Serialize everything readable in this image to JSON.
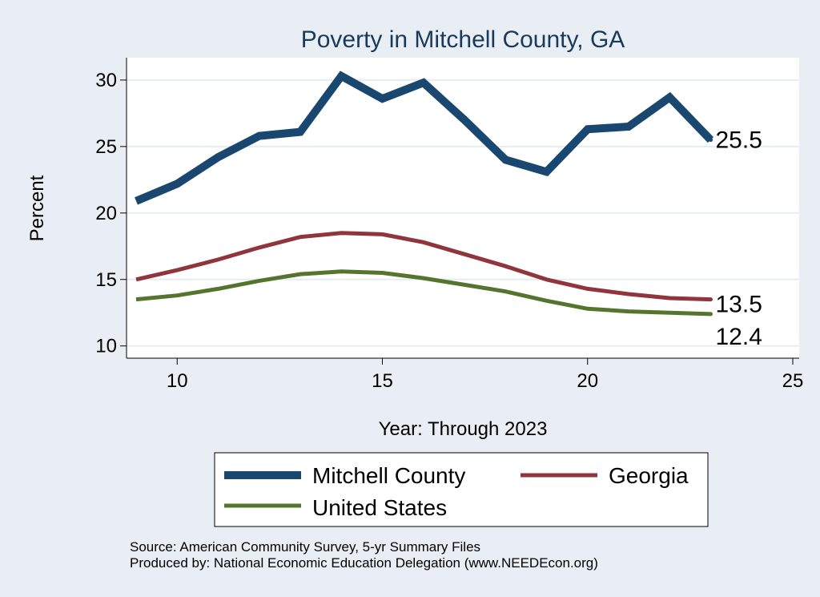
{
  "chart_data": {
    "type": "line",
    "title": "Poverty in Mitchell County, GA",
    "xlabel": "Year: Through 2023",
    "ylabel": "Percent",
    "xlim": [
      9,
      25
    ],
    "ylim": [
      9.5,
      31.2
    ],
    "xticks": [
      10,
      15,
      20,
      25
    ],
    "yticks": [
      10,
      15,
      20,
      25,
      30
    ],
    "grid": true,
    "legend_position": "bottom",
    "series": [
      {
        "name": "Mitchell County",
        "color": "#1a476f",
        "x": [
          9,
          10,
          11,
          12,
          13,
          14,
          15,
          16,
          17,
          18,
          19,
          20,
          21,
          22,
          23
        ],
        "values": [
          20.9,
          22.2,
          24.2,
          25.8,
          26.1,
          30.3,
          28.6,
          29.8,
          27.0,
          24.0,
          23.1,
          26.3,
          26.5,
          28.7,
          25.5
        ],
        "end_label": "25.5"
      },
      {
        "name": "Georgia",
        "color": "#90353b",
        "x": [
          9,
          10,
          11,
          12,
          13,
          14,
          15,
          16,
          17,
          18,
          19,
          20,
          21,
          22,
          23
        ],
        "values": [
          15.0,
          15.7,
          16.5,
          17.4,
          18.2,
          18.5,
          18.4,
          17.8,
          16.9,
          16.0,
          15.0,
          14.3,
          13.9,
          13.6,
          13.5
        ],
        "end_label": "13.5"
      },
      {
        "name": "United States",
        "color": "#55752f",
        "x": [
          9,
          10,
          11,
          12,
          13,
          14,
          15,
          16,
          17,
          18,
          19,
          20,
          21,
          22,
          23
        ],
        "values": [
          13.5,
          13.8,
          14.3,
          14.9,
          15.4,
          15.6,
          15.5,
          15.1,
          14.6,
          14.1,
          13.4,
          12.8,
          12.6,
          12.5,
          12.4
        ],
        "end_label": "12.4"
      }
    ]
  },
  "footer": {
    "source": "Source: American Community Survey, 5-yr Summary Files",
    "produced": "Produced by: National Economic Education Delegation (www.NEEDEcon.org)"
  }
}
